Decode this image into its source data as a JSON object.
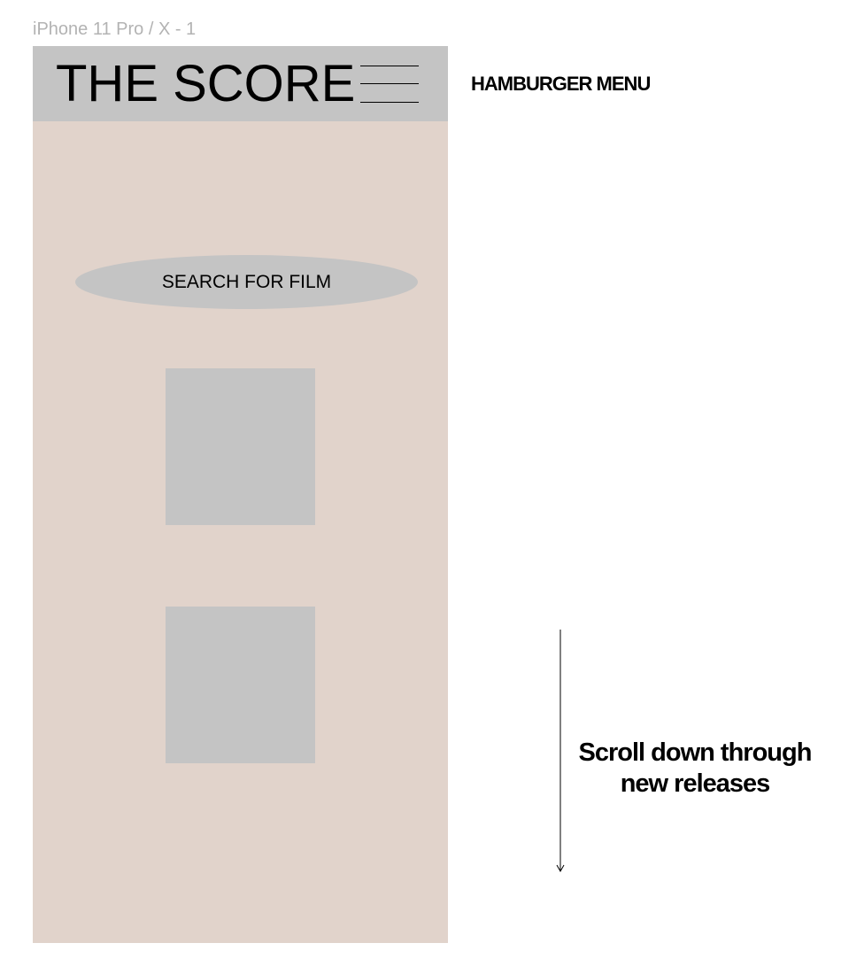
{
  "frame": {
    "label": "iPhone 11 Pro / X - 1"
  },
  "app": {
    "title": "THE SCORE",
    "menu_icon": "hamburger-menu-icon",
    "search_label": "SEARCH FOR FILM",
    "posters": [
      {
        "name": "new-release-poster-1"
      },
      {
        "name": "new-release-poster-2"
      }
    ]
  },
  "annotations": {
    "menu_note": "HAMBURGER MENU",
    "scroll_note_line1": "Scroll down through",
    "scroll_note_line2": "new releases",
    "scroll_arrow_icon": "down-arrow-icon"
  },
  "colors": {
    "screen_background": "#e1d3cb",
    "placeholder_gray": "#c4c4c4",
    "frame_label": "#b3b3b3",
    "text": "#000000"
  }
}
